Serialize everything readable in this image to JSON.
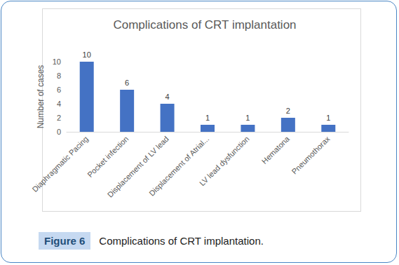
{
  "chart_data": {
    "type": "bar",
    "title": "Complications of CRT implantation",
    "y_label": "Number of cases",
    "categories": [
      "Diaphragmatic Pacing",
      "Pocket infection",
      "Displacement of LV lead",
      "Displacement of Atrial...",
      "LV lead dysfunction",
      "Hematona",
      "Pneumothorax"
    ],
    "values": [
      10,
      6,
      4,
      1,
      1,
      2,
      1
    ],
    "color": "#4472c4",
    "ylim": [
      0,
      10
    ],
    "yticks": [
      0,
      2,
      4,
      6,
      8,
      10
    ],
    "grid": false,
    "data_labels": true
  },
  "figure": {
    "label": "Figure 6",
    "caption": "Complications of CRT implantation."
  }
}
